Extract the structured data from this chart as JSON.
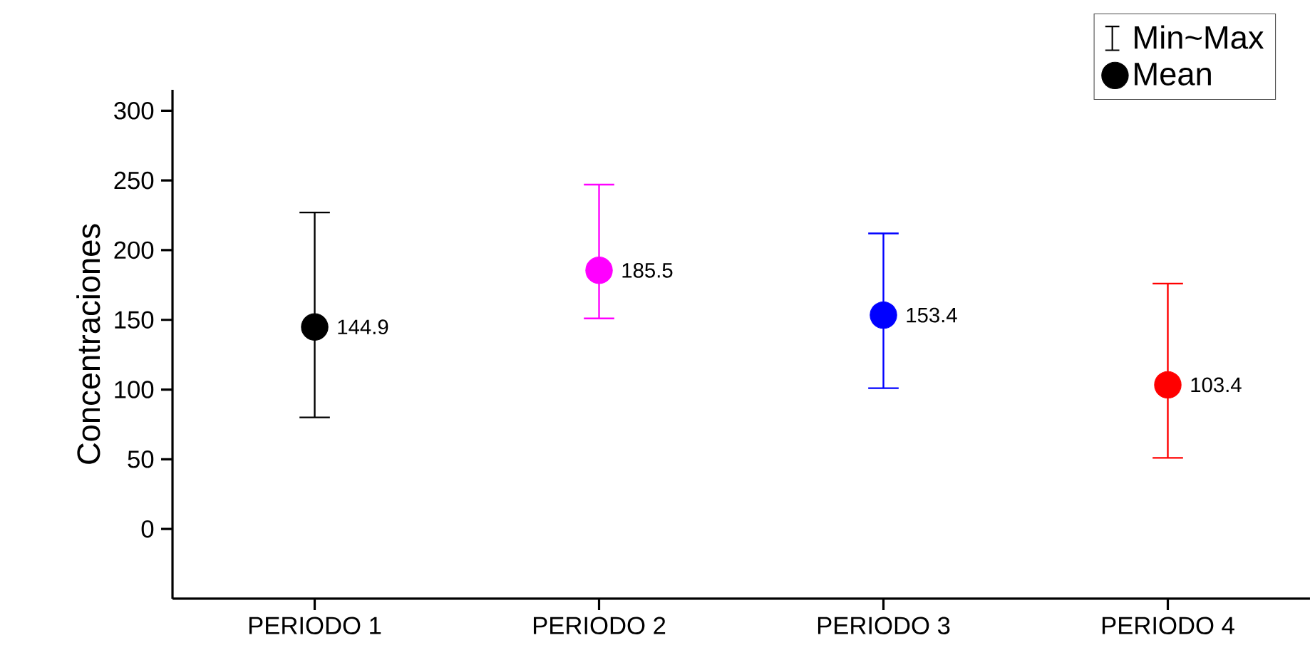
{
  "chart_data": {
    "type": "scatter",
    "ylabel": "Concentraciones",
    "categories": [
      "PERIODO 1",
      "PERIODO 2",
      "PERIODO 3",
      "PERIODO 4"
    ],
    "series": [
      {
        "name": "Mean",
        "values": [
          144.9,
          185.5,
          153.4,
          103.4
        ],
        "colors": [
          "#000000",
          "#ff00ff",
          "#0000ff",
          "#ff0000"
        ],
        "errors": [
          [
            80,
            227
          ],
          [
            151,
            247
          ],
          [
            101,
            212
          ],
          [
            51,
            176
          ]
        ],
        "value_labels": [
          "144.9",
          "185.5",
          "153.4",
          "103.4"
        ]
      }
    ],
    "annotations": [
      "Min~Max"
    ],
    "ylim": [
      -50,
      315
    ],
    "yticks": [
      0,
      50,
      100,
      150,
      200,
      250,
      300
    ],
    "marker": "circle",
    "legend": "top right"
  }
}
